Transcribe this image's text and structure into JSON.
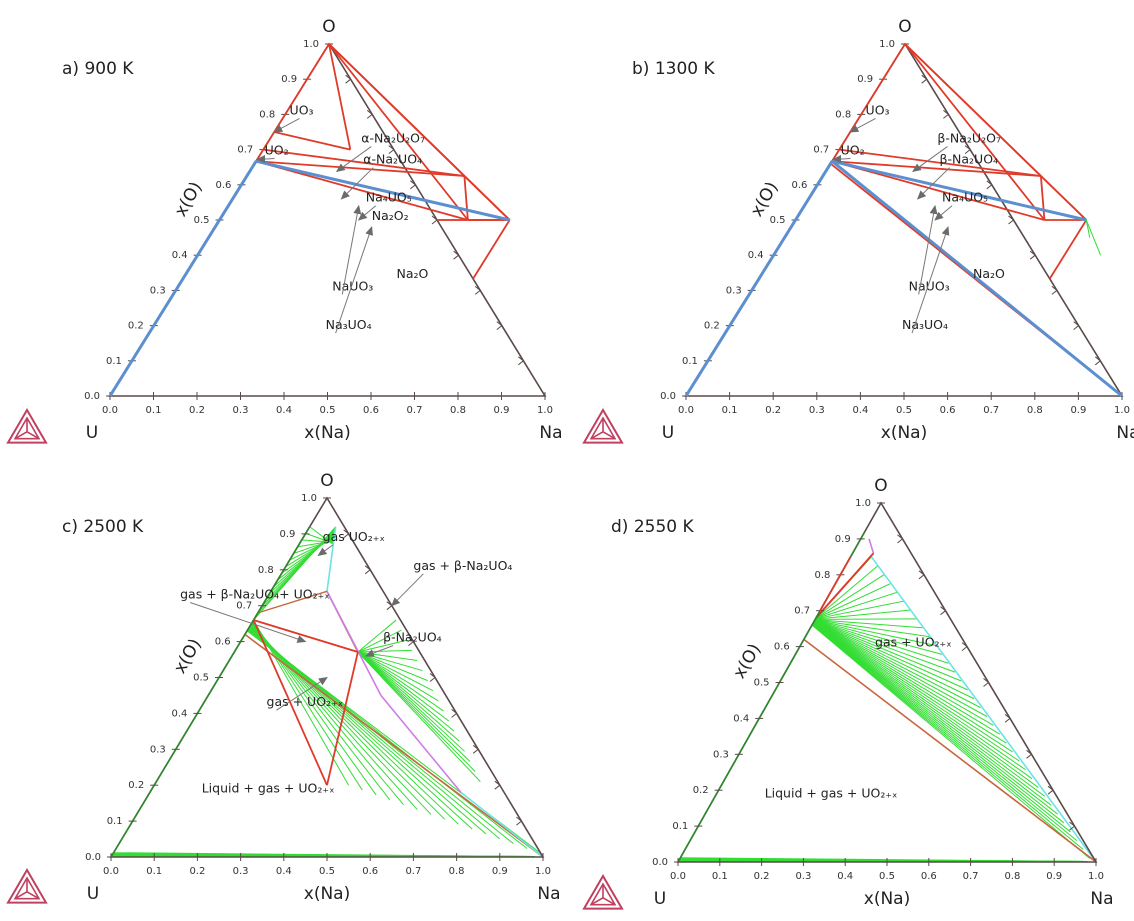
{
  "figure": {
    "logo_icon": "thermo-calc-triangle-icon",
    "colors": {
      "frame": "#5a4a4a",
      "red": "#e03a2a",
      "light_red": "#f08878",
      "blue": "#5b8fd0",
      "green": "#33dd33",
      "cyan": "#6ce3e8",
      "magenta": "#cc7ee6",
      "brown": "#c7673e",
      "logo": "#c04060"
    }
  },
  "chart_data": [
    {
      "type": "ternary",
      "panel_label": "a) 900 K",
      "vertices": {
        "left": "U",
        "right": "Na",
        "top": "O"
      },
      "xlabel": "x(Na)",
      "ylabel": "x(O)",
      "xticks": [
        "0.0",
        "0.1",
        "0.2",
        "0.3",
        "0.4",
        "0.5",
        "0.6",
        "0.7",
        "0.8",
        "0.9",
        "1.0"
      ],
      "yticks": [
        "0.0",
        "0.1",
        "0.2",
        "0.3",
        "0.4",
        "0.5",
        "0.6",
        "0.7",
        "0.8",
        "0.9",
        "1.0"
      ],
      "red_lines": [
        [
          [
            0,
            0.667
          ],
          [
            0.5,
            0.625
          ]
        ],
        [
          [
            0,
            0.667
          ],
          [
            0.571,
            0.5
          ]
        ],
        [
          [
            0,
            0.667
          ],
          [
            0.667,
            0.5
          ]
        ],
        [
          [
            0,
            0.667
          ],
          [
            0,
            1
          ]
        ],
        [
          [
            0,
            0.75
          ],
          [
            0.2,
            0.7
          ]
        ],
        [
          [
            0.2,
            0.7
          ],
          [
            0,
            1
          ]
        ],
        [
          [
            0,
            1
          ],
          [
            0.5,
            0.625
          ]
        ],
        [
          [
            0,
            1
          ],
          [
            0.571,
            0.5
          ]
        ],
        [
          [
            0,
            1
          ],
          [
            0.667,
            0.5
          ]
        ],
        [
          [
            0,
            0.7
          ],
          [
            0.5,
            0.625
          ]
        ],
        [
          [
            0.5,
            0.625
          ],
          [
            0.571,
            0.5
          ]
        ],
        [
          [
            0.5,
            0.625
          ],
          [
            0.667,
            0.5
          ]
        ],
        [
          [
            0.571,
            0.5
          ],
          [
            0.667,
            0.5
          ]
        ],
        [
          [
            0.667,
            0.5
          ],
          [
            0.667,
            0.333
          ]
        ],
        [
          [
            0.667,
            0.5
          ],
          [
            0,
            1
          ]
        ],
        [
          [
            0.667,
            0.5
          ],
          [
            0.5,
            0.5
          ]
        ]
      ],
      "light_red_lines": [
        [
          [
            0.667,
            0.5
          ],
          [
            0.667,
            0.333
          ]
        ],
        [
          [
            0.667,
            0.5
          ],
          [
            0.5,
            0.5
          ]
        ]
      ],
      "blue_lines": [
        [
          [
            0,
            0.667
          ],
          [
            0.667,
            0.5
          ]
        ],
        [
          [
            0,
            0.667
          ],
          [
            0,
            0
          ]
        ]
      ],
      "green_lines": [],
      "annotations": [
        {
          "text": "UO₃",
          "label": [
            0.01,
            0.8
          ],
          "tip": [
            0,
            0.75
          ]
        },
        {
          "text": "UO₂",
          "label": [
            0.01,
            0.686
          ],
          "tip": [
            0,
            0.672
          ]
        },
        {
          "text": "α-Na₂U₂O₇",
          "label": [
            0.215,
            0.72
          ],
          "tip": [
            0.2,
            0.638
          ]
        },
        {
          "text": "α-Na₂UO₄",
          "label": [
            0.25,
            0.66
          ],
          "tip": [
            0.25,
            0.56
          ]
        },
        {
          "text": "Na₄UO₅",
          "label": [
            0.31,
            0.552
          ],
          "tip": [
            0.32,
            0.5
          ]
        },
        {
          "text": "Na₂O₂",
          "label": [
            0.35,
            0.5
          ],
          "tip": null
        },
        {
          "text": "NaUO₃",
          "label": [
            0.36,
            0.3
          ],
          "tip": [
            0.3,
            0.54
          ]
        },
        {
          "text": "Na₃UO₄",
          "label": [
            0.4,
            0.19
          ],
          "tip": [
            0.36,
            0.48
          ]
        },
        {
          "text": "Na₂O",
          "label": [
            0.49,
            0.335
          ],
          "tip": null
        }
      ]
    },
    {
      "type": "ternary",
      "panel_label": "b) 1300 K",
      "vertices": {
        "left": "U",
        "right": "Na",
        "top": "O"
      },
      "xlabel": "x(Na)",
      "ylabel": "x(O)",
      "xticks": [
        "0.0",
        "0.1",
        "0.2",
        "0.3",
        "0.4",
        "0.5",
        "0.6",
        "0.7",
        "0.8",
        "0.9",
        "1.0"
      ],
      "yticks": [
        "0.0",
        "0.1",
        "0.2",
        "0.3",
        "0.4",
        "0.5",
        "0.6",
        "0.7",
        "0.8",
        "0.9",
        "1.0"
      ],
      "red_lines": [
        [
          [
            0,
            0.667
          ],
          [
            0.5,
            0.625
          ]
        ],
        [
          [
            0,
            0.667
          ],
          [
            0.571,
            0.5
          ]
        ],
        [
          [
            0,
            0.667
          ],
          [
            0.667,
            0.5
          ]
        ],
        [
          [
            0,
            0.667
          ],
          [
            0,
            1
          ]
        ],
        [
          [
            0,
            0.7
          ],
          [
            0.5,
            0.625
          ]
        ],
        [
          [
            0,
            1
          ],
          [
            0.5,
            0.625
          ]
        ],
        [
          [
            0,
            1
          ],
          [
            0.571,
            0.5
          ]
        ],
        [
          [
            0,
            1
          ],
          [
            0.667,
            0.5
          ]
        ],
        [
          [
            0.5,
            0.625
          ],
          [
            0.571,
            0.5
          ]
        ],
        [
          [
            0.5,
            0.625
          ],
          [
            0.667,
            0.5
          ]
        ],
        [
          [
            0.571,
            0.5
          ],
          [
            0.667,
            0.5
          ]
        ],
        [
          [
            0.667,
            0.5
          ],
          [
            0.667,
            0.333
          ]
        ],
        [
          [
            0,
            0.66
          ],
          [
            1,
            0
          ]
        ]
      ],
      "light_red_lines": [],
      "blue_lines": [
        [
          [
            0,
            0.667
          ],
          [
            0.667,
            0.5
          ]
        ],
        [
          [
            0,
            0.667
          ],
          [
            0,
            0
          ]
        ],
        [
          [
            0,
            0.667
          ],
          [
            1,
            0
          ]
        ]
      ],
      "green_lines": [
        [
          [
            0.667,
            0.5
          ],
          [
            0.7,
            0.45
          ]
        ],
        [
          [
            0.667,
            0.5
          ],
          [
            0.75,
            0.4
          ]
        ]
      ],
      "annotations": [
        {
          "text": "UO₃",
          "label": [
            0.01,
            0.8
          ],
          "tip": [
            0,
            0.75
          ]
        },
        {
          "text": "UO₂",
          "label": [
            0.01,
            0.686
          ],
          "tip": [
            0,
            0.672
          ]
        },
        {
          "text": "β-Na₂U₂O₇",
          "label": [
            0.215,
            0.72
          ],
          "tip": [
            0.2,
            0.638
          ]
        },
        {
          "text": "β-Na₂UO₄",
          "label": [
            0.25,
            0.66
          ],
          "tip": [
            0.25,
            0.56
          ]
        },
        {
          "text": "Na₄UO₅",
          "label": [
            0.31,
            0.552
          ],
          "tip": [
            0.32,
            0.5
          ]
        },
        {
          "text": "NaUO₃",
          "label": [
            0.36,
            0.3
          ],
          "tip": [
            0.3,
            0.54
          ]
        },
        {
          "text": "Na₃UO₄",
          "label": [
            0.4,
            0.19
          ],
          "tip": [
            0.36,
            0.48
          ]
        },
        {
          "text": "Na₂O",
          "label": [
            0.49,
            0.335
          ],
          "tip": null
        }
      ]
    },
    {
      "type": "ternary",
      "panel_label": "c) 2500 K",
      "vertices": {
        "left": "U",
        "right": "Na",
        "top": "O"
      },
      "xlabel": "x(Na)",
      "ylabel": "x(O)",
      "xticks": [
        "0.0",
        "0.1",
        "0.2",
        "0.3",
        "0.4",
        "0.5",
        "0.6",
        "0.7",
        "0.8",
        "0.9",
        "1.0"
      ],
      "yticks": [
        "0.0",
        "0.1",
        "0.2",
        "0.3",
        "0.4",
        "0.5",
        "0.6",
        "0.7",
        "0.8",
        "0.9",
        "1.0"
      ],
      "red_lines": [
        [
          [
            0,
            0.66
          ],
          [
            0.286,
            0.571
          ]
        ],
        [
          [
            0.286,
            0.571
          ],
          [
            0.4,
            0.2
          ]
        ],
        [
          [
            0,
            0.66
          ],
          [
            0.4,
            0.2
          ]
        ]
      ],
      "light_red_lines": [],
      "blue_lines": [],
      "green_lines": [],
      "annotations": [
        {
          "text": "gas UO₂₊ₓ",
          "label": [
            0.05,
            0.88
          ],
          "tip": [
            0.06,
            0.84
          ]
        },
        {
          "text": "gas + β-Na₂UO₄",
          "label": [
            0.3,
            0.8
          ],
          "tip": [
            0.3,
            0.7
          ]
        },
        {
          "text": "gas + β-Na₂UO₄+ UO₂₊ₓ",
          "label": [
            -0.2,
            0.72
          ],
          "tip": [
            0.15,
            0.6
          ]
        },
        {
          "text": "β-Na₂UO₄",
          "label": [
            0.33,
            0.6
          ],
          "tip": [
            0.31,
            0.56
          ]
        },
        {
          "text": "gas + UO₂₊ₓ",
          "label": [
            0.15,
            0.42
          ],
          "tip": [
            0.25,
            0.5
          ]
        },
        {
          "text": "Liquid + gas + UO₂₊ₓ",
          "label": [
            0.12,
            0.18
          ],
          "tip": null
        }
      ]
    },
    {
      "type": "ternary",
      "panel_label": "d) 2550 K",
      "vertices": {
        "left": "U",
        "right": "Na",
        "top": "O"
      },
      "xlabel": "x(Na)",
      "ylabel": "x(O)",
      "xticks": [
        "0.0",
        "0.1",
        "0.2",
        "0.3",
        "0.4",
        "0.5",
        "0.6",
        "0.7",
        "0.8",
        "0.9",
        "1.0"
      ],
      "yticks": [
        "0.0",
        "0.1",
        "0.2",
        "0.3",
        "0.4",
        "0.5",
        "0.6",
        "0.7",
        "0.8",
        "0.9",
        "1.0"
      ],
      "red_lines": [
        [
          [
            0,
            0.7
          ],
          [
            0.0,
            0.85
          ]
        ]
      ],
      "light_red_lines": [],
      "blue_lines": [],
      "green_lines": [],
      "annotations": [
        {
          "text": "gas + UO₂₊ₓ",
          "label": [
            0.18,
            0.6
          ],
          "tip": null
        },
        {
          "text": "Liquid + gas + UO₂₊ₓ",
          "label": [
            0.12,
            0.18
          ],
          "tip": null
        }
      ]
    }
  ]
}
